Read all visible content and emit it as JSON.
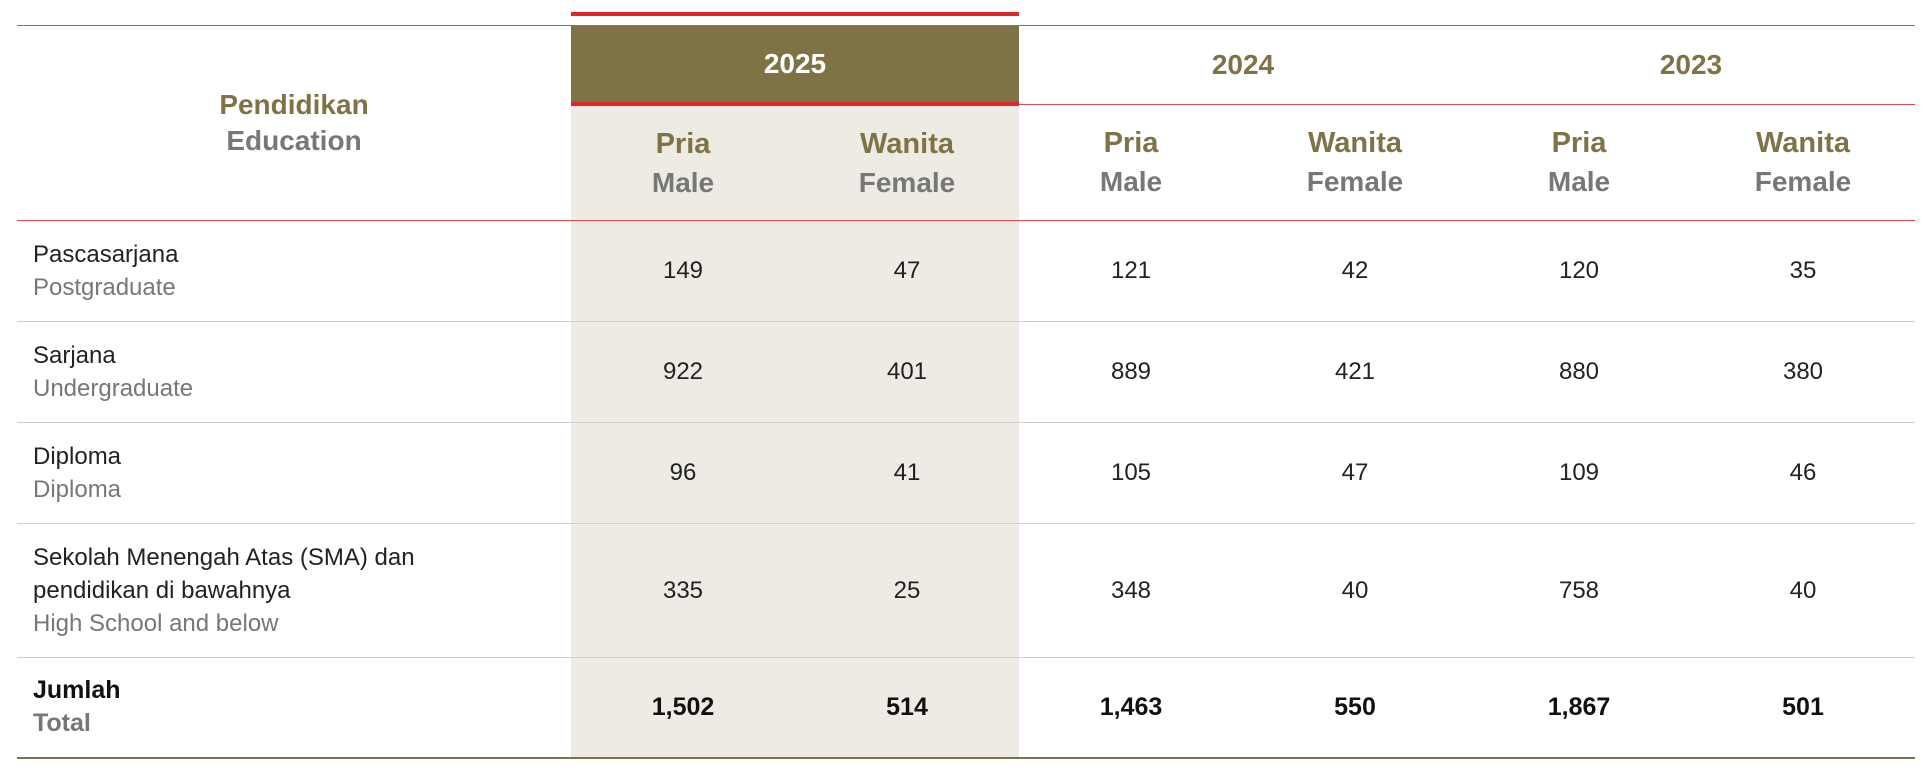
{
  "header": {
    "title": "Pendidikan",
    "subtitle": "Education"
  },
  "years": [
    {
      "year": "2025",
      "columns": [
        {
          "title": "Pria",
          "subtitle": "Male"
        },
        {
          "title": "Wanita",
          "subtitle": "Female"
        }
      ]
    },
    {
      "year": "2024",
      "columns": [
        {
          "title": "Pria",
          "subtitle": "Male"
        },
        {
          "title": "Wanita",
          "subtitle": "Female"
        }
      ]
    },
    {
      "year": "2023",
      "columns": [
        {
          "title": "Pria",
          "subtitle": "Male"
        },
        {
          "title": "Wanita",
          "subtitle": "Female"
        }
      ]
    }
  ],
  "rows": [
    {
      "label": "Pascasarjana",
      "translation": "Postgraduate",
      "values": [
        "149",
        "47",
        "121",
        "42",
        "120",
        "35"
      ]
    },
    {
      "label": "Sarjana",
      "translation": "Undergraduate",
      "values": [
        "922",
        "401",
        "889",
        "421",
        "880",
        "380"
      ]
    },
    {
      "label": "Diploma",
      "translation": "Diploma",
      "values": [
        "96",
        "41",
        "105",
        "47",
        "109",
        "46"
      ]
    },
    {
      "label": "Sekolah Menengah Atas (SMA) dan pendidikan di bawahnya",
      "translation": "High School and below",
      "values": [
        "335",
        "25",
        "348",
        "40",
        "758",
        "40"
      ]
    }
  ],
  "total": {
    "label": "Jumlah",
    "translation": "Total",
    "values": [
      "1,502",
      "514",
      "1,463",
      "550",
      "1,867",
      "501"
    ]
  }
}
